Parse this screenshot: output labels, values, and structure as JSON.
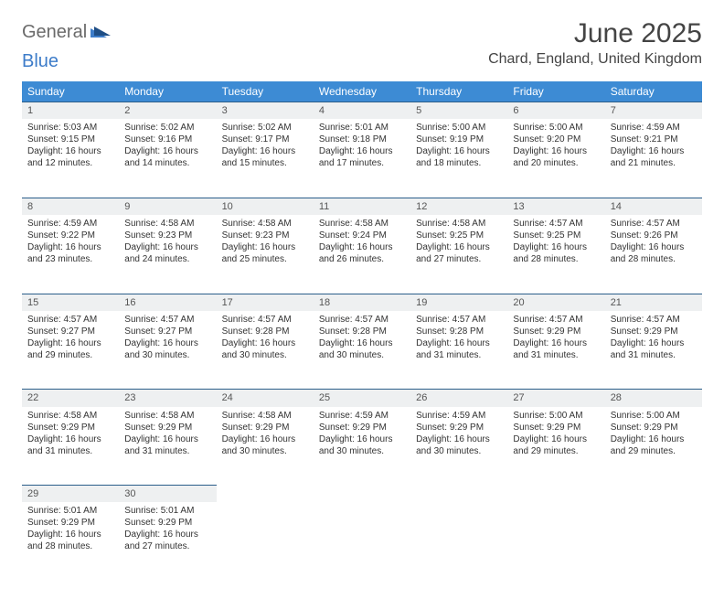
{
  "logo": {
    "text1": "General",
    "text2": "Blue"
  },
  "title": "June 2025",
  "location": "Chard, England, United Kingdom",
  "colors": {
    "header_bg": "#3d8bd4",
    "header_text": "#ffffff",
    "daynum_bg": "#eef0f1",
    "daynum_border": "#2b5e8a",
    "logo_gray": "#6a6a6a",
    "logo_blue": "#3d7cc9",
    "page_bg": "#ffffff",
    "body_text": "#333333"
  },
  "weekdays": [
    "Sunday",
    "Monday",
    "Tuesday",
    "Wednesday",
    "Thursday",
    "Friday",
    "Saturday"
  ],
  "weeks": [
    [
      {
        "n": "1",
        "sr": "Sunrise: 5:03 AM",
        "ss": "Sunset: 9:15 PM",
        "d1": "Daylight: 16 hours",
        "d2": "and 12 minutes."
      },
      {
        "n": "2",
        "sr": "Sunrise: 5:02 AM",
        "ss": "Sunset: 9:16 PM",
        "d1": "Daylight: 16 hours",
        "d2": "and 14 minutes."
      },
      {
        "n": "3",
        "sr": "Sunrise: 5:02 AM",
        "ss": "Sunset: 9:17 PM",
        "d1": "Daylight: 16 hours",
        "d2": "and 15 minutes."
      },
      {
        "n": "4",
        "sr": "Sunrise: 5:01 AM",
        "ss": "Sunset: 9:18 PM",
        "d1": "Daylight: 16 hours",
        "d2": "and 17 minutes."
      },
      {
        "n": "5",
        "sr": "Sunrise: 5:00 AM",
        "ss": "Sunset: 9:19 PM",
        "d1": "Daylight: 16 hours",
        "d2": "and 18 minutes."
      },
      {
        "n": "6",
        "sr": "Sunrise: 5:00 AM",
        "ss": "Sunset: 9:20 PM",
        "d1": "Daylight: 16 hours",
        "d2": "and 20 minutes."
      },
      {
        "n": "7",
        "sr": "Sunrise: 4:59 AM",
        "ss": "Sunset: 9:21 PM",
        "d1": "Daylight: 16 hours",
        "d2": "and 21 minutes."
      }
    ],
    [
      {
        "n": "8",
        "sr": "Sunrise: 4:59 AM",
        "ss": "Sunset: 9:22 PM",
        "d1": "Daylight: 16 hours",
        "d2": "and 23 minutes."
      },
      {
        "n": "9",
        "sr": "Sunrise: 4:58 AM",
        "ss": "Sunset: 9:23 PM",
        "d1": "Daylight: 16 hours",
        "d2": "and 24 minutes."
      },
      {
        "n": "10",
        "sr": "Sunrise: 4:58 AM",
        "ss": "Sunset: 9:23 PM",
        "d1": "Daylight: 16 hours",
        "d2": "and 25 minutes."
      },
      {
        "n": "11",
        "sr": "Sunrise: 4:58 AM",
        "ss": "Sunset: 9:24 PM",
        "d1": "Daylight: 16 hours",
        "d2": "and 26 minutes."
      },
      {
        "n": "12",
        "sr": "Sunrise: 4:58 AM",
        "ss": "Sunset: 9:25 PM",
        "d1": "Daylight: 16 hours",
        "d2": "and 27 minutes."
      },
      {
        "n": "13",
        "sr": "Sunrise: 4:57 AM",
        "ss": "Sunset: 9:25 PM",
        "d1": "Daylight: 16 hours",
        "d2": "and 28 minutes."
      },
      {
        "n": "14",
        "sr": "Sunrise: 4:57 AM",
        "ss": "Sunset: 9:26 PM",
        "d1": "Daylight: 16 hours",
        "d2": "and 28 minutes."
      }
    ],
    [
      {
        "n": "15",
        "sr": "Sunrise: 4:57 AM",
        "ss": "Sunset: 9:27 PM",
        "d1": "Daylight: 16 hours",
        "d2": "and 29 minutes."
      },
      {
        "n": "16",
        "sr": "Sunrise: 4:57 AM",
        "ss": "Sunset: 9:27 PM",
        "d1": "Daylight: 16 hours",
        "d2": "and 30 minutes."
      },
      {
        "n": "17",
        "sr": "Sunrise: 4:57 AM",
        "ss": "Sunset: 9:28 PM",
        "d1": "Daylight: 16 hours",
        "d2": "and 30 minutes."
      },
      {
        "n": "18",
        "sr": "Sunrise: 4:57 AM",
        "ss": "Sunset: 9:28 PM",
        "d1": "Daylight: 16 hours",
        "d2": "and 30 minutes."
      },
      {
        "n": "19",
        "sr": "Sunrise: 4:57 AM",
        "ss": "Sunset: 9:28 PM",
        "d1": "Daylight: 16 hours",
        "d2": "and 31 minutes."
      },
      {
        "n": "20",
        "sr": "Sunrise: 4:57 AM",
        "ss": "Sunset: 9:29 PM",
        "d1": "Daylight: 16 hours",
        "d2": "and 31 minutes."
      },
      {
        "n": "21",
        "sr": "Sunrise: 4:57 AM",
        "ss": "Sunset: 9:29 PM",
        "d1": "Daylight: 16 hours",
        "d2": "and 31 minutes."
      }
    ],
    [
      {
        "n": "22",
        "sr": "Sunrise: 4:58 AM",
        "ss": "Sunset: 9:29 PM",
        "d1": "Daylight: 16 hours",
        "d2": "and 31 minutes."
      },
      {
        "n": "23",
        "sr": "Sunrise: 4:58 AM",
        "ss": "Sunset: 9:29 PM",
        "d1": "Daylight: 16 hours",
        "d2": "and 31 minutes."
      },
      {
        "n": "24",
        "sr": "Sunrise: 4:58 AM",
        "ss": "Sunset: 9:29 PM",
        "d1": "Daylight: 16 hours",
        "d2": "and 30 minutes."
      },
      {
        "n": "25",
        "sr": "Sunrise: 4:59 AM",
        "ss": "Sunset: 9:29 PM",
        "d1": "Daylight: 16 hours",
        "d2": "and 30 minutes."
      },
      {
        "n": "26",
        "sr": "Sunrise: 4:59 AM",
        "ss": "Sunset: 9:29 PM",
        "d1": "Daylight: 16 hours",
        "d2": "and 30 minutes."
      },
      {
        "n": "27",
        "sr": "Sunrise: 5:00 AM",
        "ss": "Sunset: 9:29 PM",
        "d1": "Daylight: 16 hours",
        "d2": "and 29 minutes."
      },
      {
        "n": "28",
        "sr": "Sunrise: 5:00 AM",
        "ss": "Sunset: 9:29 PM",
        "d1": "Daylight: 16 hours",
        "d2": "and 29 minutes."
      }
    ],
    [
      {
        "n": "29",
        "sr": "Sunrise: 5:01 AM",
        "ss": "Sunset: 9:29 PM",
        "d1": "Daylight: 16 hours",
        "d2": "and 28 minutes."
      },
      {
        "n": "30",
        "sr": "Sunrise: 5:01 AM",
        "ss": "Sunset: 9:29 PM",
        "d1": "Daylight: 16 hours",
        "d2": "and 27 minutes."
      },
      null,
      null,
      null,
      null,
      null
    ]
  ]
}
